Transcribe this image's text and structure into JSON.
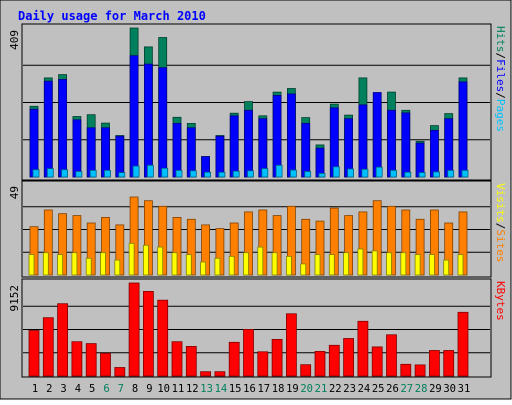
{
  "title": "Daily usage for March 2010",
  "colors": {
    "background": "#c0c0c0",
    "title": "#0000ff",
    "hits": "#00805c",
    "files": "#0000ff",
    "pages": "#00c0ff",
    "visits": "#ffff00",
    "sites": "#ff8000",
    "kbytes": "#ff0000",
    "weekend_label": "#00805c",
    "weekday_label": "#000000"
  },
  "chart_data": [
    {
      "type": "bar",
      "panel": "top",
      "ymax_label": "409",
      "ylim": [
        0,
        409
      ],
      "legend": [
        {
          "key": "pages",
          "label": "Pages"
        },
        {
          "key": "files",
          "label": "Files"
        },
        {
          "key": "hits",
          "label": "Hits"
        }
      ],
      "legend_separator": "/",
      "categories": [
        "1",
        "2",
        "3",
        "4",
        "5",
        "6",
        "7",
        "8",
        "9",
        "10",
        "11",
        "12",
        "13",
        "14",
        "15",
        "16",
        "17",
        "18",
        "19",
        "20",
        "21",
        "22",
        "23",
        "24",
        "25",
        "26",
        "27",
        "28",
        "29",
        "30",
        "31"
      ],
      "weekend_days": [
        "6",
        "7",
        "13",
        "14",
        "20",
        "21",
        "27",
        "28"
      ],
      "series": [
        {
          "name": "Hits",
          "key": "hits",
          "values": [
            194,
            272,
            281,
            166,
            171,
            148,
            114,
            409,
            357,
            383,
            164,
            147,
            56,
            114,
            175,
            207,
            168,
            233,
            243,
            163,
            88,
            200,
            170,
            272,
            205,
            233,
            183,
            98,
            141,
            174,
            272
          ]
        },
        {
          "name": "Files",
          "key": "files",
          "values": [
            186,
            263,
            268,
            157,
            135,
            135,
            112,
            333,
            310,
            300,
            147,
            135,
            56,
            112,
            168,
            183,
            160,
            224,
            228,
            147,
            79,
            190,
            160,
            198,
            232,
            183,
            176,
            93,
            128,
            160,
            261
          ]
        },
        {
          "name": "Pages",
          "key": "pages",
          "values": [
            20,
            23,
            20,
            15,
            18,
            18,
            12,
            30,
            32,
            24,
            18,
            17,
            13,
            13,
            16,
            17,
            23,
            32,
            19,
            15,
            10,
            28,
            22,
            21,
            27,
            18,
            13,
            12,
            14,
            18,
            18
          ]
        }
      ]
    },
    {
      "type": "bar",
      "panel": "middle",
      "ymax_label": "49",
      "ylim": [
        0,
        49
      ],
      "legend": [
        {
          "key": "sites",
          "label": "Sites"
        },
        {
          "key": "visits",
          "label": "Visits"
        }
      ],
      "legend_separator": "/",
      "categories": [
        "1",
        "2",
        "3",
        "4",
        "5",
        "6",
        "7",
        "8",
        "9",
        "10",
        "11",
        "12",
        "13",
        "14",
        "15",
        "16",
        "17",
        "18",
        "19",
        "20",
        "21",
        "22",
        "23",
        "24",
        "25",
        "26",
        "27",
        "28",
        "29",
        "30",
        "31"
      ],
      "series": [
        {
          "name": "Sites",
          "key": "sites",
          "values": [
            26,
            35,
            33,
            32,
            28,
            31,
            27,
            42,
            40,
            37,
            31,
            30,
            27,
            25,
            28,
            34,
            35,
            32,
            37,
            30,
            29,
            36,
            32,
            34,
            40,
            37,
            35,
            30,
            35,
            28,
            34
          ]
        },
        {
          "name": "Visits",
          "key": "visits",
          "values": [
            11,
            12,
            11,
            12,
            9,
            12,
            8,
            17,
            16,
            15,
            12,
            11,
            7,
            9,
            10,
            12,
            15,
            12,
            10,
            6,
            11,
            11,
            12,
            14,
            13,
            12,
            12,
            11,
            11,
            8,
            11
          ]
        }
      ]
    },
    {
      "type": "bar",
      "panel": "bottom",
      "ymax_label": "9152",
      "ylim": [
        0,
        9152
      ],
      "legend": [
        {
          "key": "kbytes",
          "label": "KBytes"
        }
      ],
      "categories": [
        "1",
        "2",
        "3",
        "4",
        "5",
        "6",
        "7",
        "8",
        "9",
        "10",
        "11",
        "12",
        "13",
        "14",
        "15",
        "16",
        "17",
        "18",
        "19",
        "20",
        "21",
        "22",
        "23",
        "24",
        "25",
        "26",
        "27",
        "28",
        "29",
        "30",
        "31"
      ],
      "series": [
        {
          "name": "KBytes",
          "key": "kbytes",
          "values": [
            4477,
            5740,
            7119,
            3373,
            3190,
            2237,
            841,
            9152,
            8326,
            7462,
            3374,
            2914,
            423,
            423,
            3312,
            4581,
            2383,
            3602,
            6122,
            1115,
            2418,
            3022,
            3694,
            5384,
            2865,
            4057,
            1149,
            1097,
            2511,
            2511,
            6270
          ]
        }
      ]
    }
  ]
}
